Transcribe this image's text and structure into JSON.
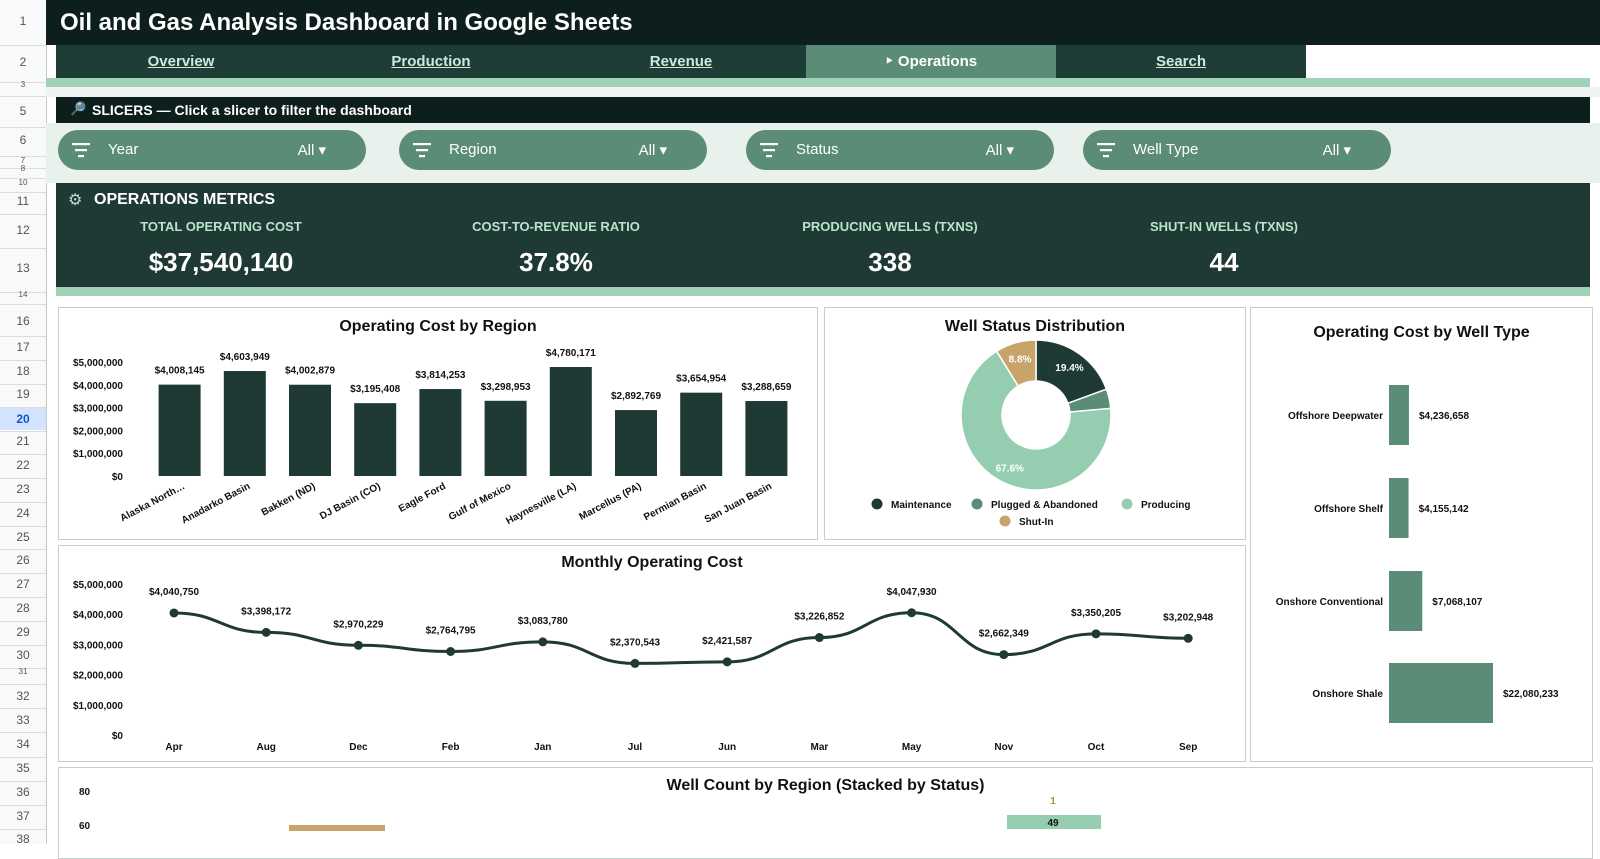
{
  "row_numbers": [
    "1",
    "2",
    "3",
    "5",
    "6",
    "7",
    "8",
    "10",
    "11",
    "12",
    "13",
    "14",
    "16",
    "17",
    "18",
    "19",
    "20",
    "21",
    "22",
    "23",
    "24",
    "25",
    "26",
    "27",
    "28",
    "29",
    "30",
    "31",
    "32",
    "33",
    "34",
    "35",
    "36",
    "37",
    "38"
  ],
  "title": "Oil and Gas Analysis Dashboard in Google Sheets",
  "nav": {
    "tabs": [
      {
        "label": "Overview",
        "active": false
      },
      {
        "label": "Production",
        "active": false
      },
      {
        "label": "Revenue",
        "active": false
      },
      {
        "label": "‣ Operations",
        "active": true
      },
      {
        "label": "Search",
        "active": false
      }
    ]
  },
  "slicers": {
    "header_icon": "magnifier-icon",
    "header": "SLICERS — Click a slicer to filter the dashboard",
    "items": [
      {
        "name": "Year",
        "value": "All ▾"
      },
      {
        "name": "Region",
        "value": "All ▾"
      },
      {
        "name": "Status",
        "value": "All ▾"
      },
      {
        "name": "Well Type",
        "value": "All ▾"
      }
    ]
  },
  "metrics": {
    "header": "OPERATIONS METRICS",
    "kpis": [
      {
        "label": "TOTAL OPERATING COST",
        "value": "$37,540,140"
      },
      {
        "label": "COST-TO-REVENUE RATIO",
        "value": "37.8%"
      },
      {
        "label": "PRODUCING WELLS (TXNS)",
        "value": "338"
      },
      {
        "label": "SHUT-IN WELLS (TXNS)",
        "value": "44"
      }
    ]
  },
  "colors": {
    "dark": "#0d1f1c",
    "bar": "#1f3a34",
    "mid": "#5a8c78",
    "light": "#9fd1b5",
    "tan": "#c9a46a",
    "plugged": "#5a8c78",
    "producing": "#95cdb0"
  },
  "chart_data": [
    {
      "type": "bar",
      "title": "Operating Cost by Region",
      "categories": [
        "Alaska North…",
        "Anadarko Basin",
        "Bakken (ND)",
        "DJ Basin (CO)",
        "Eagle Ford",
        "Gulf of Mexico",
        "Haynesville (LA)",
        "Marcellus (PA)",
        "Permian Basin",
        "San Juan Basin"
      ],
      "values": [
        4008145,
        4603949,
        4002879,
        3195408,
        3814253,
        3298953,
        4780171,
        2892769,
        3654954,
        3288659
      ],
      "labels": [
        "$4,008,145",
        "$4,603,949",
        "$4,002,879",
        "$3,195,408",
        "$3,814,253",
        "$3,298,953",
        "$4,780,171",
        "$2,892,769",
        "$3,654,954",
        "$3,288,659"
      ],
      "yticks": [
        "$0",
        "$1,000,000",
        "$2,000,000",
        "$3,000,000",
        "$4,000,000",
        "$5,000,000"
      ],
      "ylim": [
        0,
        5000000
      ]
    },
    {
      "type": "pie",
      "title": "Well Status Distribution",
      "slices": [
        {
          "name": "Maintenance",
          "value": 19.4,
          "label": "19.4%"
        },
        {
          "name": "Plugged & Abandoned",
          "value": 4.2,
          "label": ""
        },
        {
          "name": "Producing",
          "value": 67.6,
          "label": "67.6%"
        },
        {
          "name": "Shut-In",
          "value": 8.8,
          "label": "8.8%"
        }
      ]
    },
    {
      "type": "bar",
      "title": "Operating Cost by Well Type",
      "orientation": "horizontal",
      "categories": [
        "Offshore Deepwater",
        "Offshore Shelf",
        "Onshore Conventional",
        "Onshore Shale"
      ],
      "values": [
        4236658,
        4155142,
        7068107,
        22080233
      ],
      "labels": [
        "$4,236,658",
        "$4,155,142",
        "$7,068,107",
        "$22,080,233"
      ]
    },
    {
      "type": "line",
      "title": "Monthly Operating Cost",
      "x": [
        "Apr",
        "Aug",
        "Dec",
        "Feb",
        "Jan",
        "Jul",
        "Jun",
        "Mar",
        "May",
        "Nov",
        "Oct",
        "Sep"
      ],
      "values": [
        4040750,
        3398172,
        2970229,
        2764795,
        3083780,
        2370543,
        2421587,
        3226852,
        4047930,
        2662349,
        3350205,
        3202948
      ],
      "labels": [
        "$4,040,750",
        "$3,398,172",
        "$2,970,229",
        "$2,764,795",
        "$3,083,780",
        "$2,370,543",
        "$2,421,587",
        "$3,226,852",
        "$4,047,930",
        "$2,662,349",
        "$3,350,205",
        "$3,202,948"
      ],
      "yticks": [
        "$0",
        "$1,000,000",
        "$2,000,000",
        "$3,000,000",
        "$4,000,000",
        "$5,000,000"
      ],
      "ylim": [
        0,
        5000000
      ]
    },
    {
      "type": "bar",
      "title": "Well Count by Region (Stacked by Status)",
      "yticks": [
        "60",
        "80"
      ],
      "visible_labels": [
        "1",
        "49"
      ]
    }
  ]
}
